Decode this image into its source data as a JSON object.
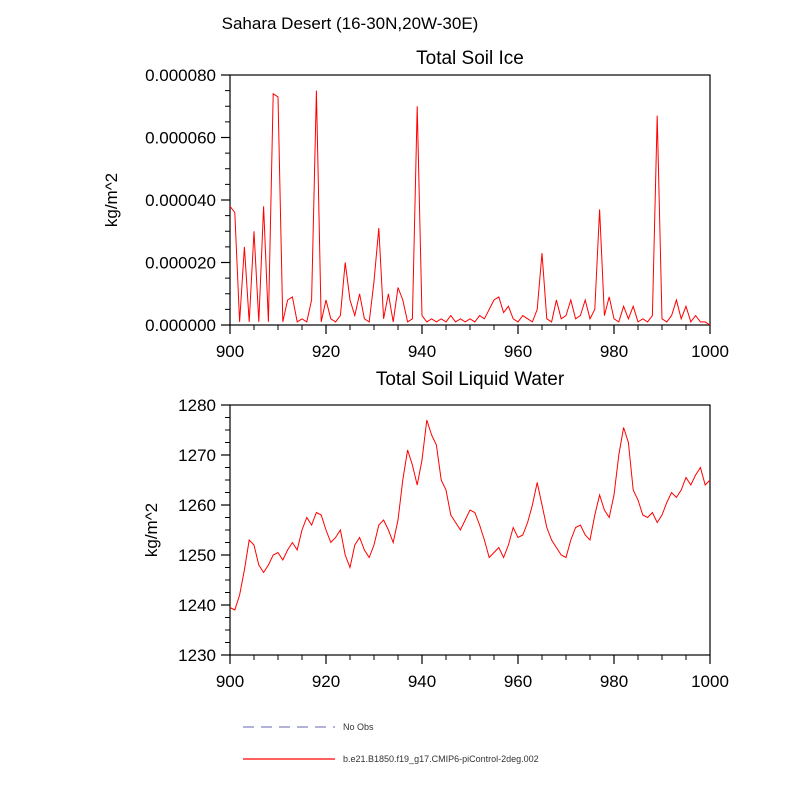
{
  "figure": {
    "title": "Sahara Desert (16-30N,20W-30E)"
  },
  "chart_data": [
    {
      "type": "line",
      "title": "Total Soil Ice",
      "ylabel": "kg/m^2",
      "xlabel": "",
      "xlim": [
        900,
        1000
      ],
      "ylim": [
        0,
        8e-05
      ],
      "grid": false,
      "xticks": {
        "values": [
          900,
          920,
          940,
          960,
          980,
          1000
        ],
        "labels": [
          "900",
          "920",
          "940",
          "960",
          "980",
          "1000"
        ]
      },
      "yticks": {
        "values": [
          0,
          2e-05,
          4e-05,
          6e-05,
          8e-05
        ],
        "labels": [
          "0.000000",
          "0.000020",
          "0.000040",
          "0.000060",
          "0.000080"
        ]
      },
      "minor_x_step": 5,
      "minor_y_step": 5e-06,
      "x_start": 900,
      "x_step": 1,
      "series": [
        {
          "name": "b.e21.B1850.f19_g17.CMIP6-piControl-2deg.002",
          "color": "#ff0000",
          "values": [
            3.8e-05,
            3.6e-05,
            1e-06,
            2.5e-05,
            1e-06,
            3e-05,
            1e-06,
            3.8e-05,
            1e-06,
            7.4e-05,
            7.3e-05,
            1e-06,
            8e-06,
            9e-06,
            1e-06,
            2e-06,
            1e-06,
            8e-06,
            7.5e-05,
            1e-06,
            8e-06,
            2e-06,
            1e-06,
            3e-06,
            2e-05,
            8e-06,
            3e-06,
            1e-05,
            2e-06,
            1e-06,
            1.4e-05,
            3.1e-05,
            2e-06,
            1e-05,
            1e-06,
            1.2e-05,
            8e-06,
            1e-06,
            2e-06,
            7e-05,
            3e-06,
            1e-06,
            2e-06,
            1e-06,
            2e-06,
            1e-06,
            3e-06,
            1e-06,
            2e-06,
            1e-06,
            2e-06,
            1e-06,
            3e-06,
            2e-06,
            5e-06,
            8e-06,
            9e-06,
            4e-06,
            6e-06,
            2e-06,
            1e-06,
            3e-06,
            2e-06,
            1e-06,
            5e-06,
            2.3e-05,
            2e-06,
            1e-06,
            8e-06,
            2e-06,
            3e-06,
            8e-06,
            2e-06,
            3e-06,
            8e-06,
            2e-06,
            5e-06,
            3.7e-05,
            3e-06,
            9e-06,
            2e-06,
            1e-06,
            6e-06,
            2e-06,
            6e-06,
            1e-06,
            2e-06,
            1e-06,
            3e-06,
            6.7e-05,
            2e-06,
            1e-06,
            3e-06,
            8e-06,
            2e-06,
            6e-06,
            1e-06,
            3e-06,
            1e-06,
            1e-06,
            0
          ]
        }
      ]
    },
    {
      "type": "line",
      "title": "Total Soil Liquid Water",
      "ylabel": "kg/m^2",
      "xlabel": "",
      "xlim": [
        900,
        1000
      ],
      "ylim": [
        1230,
        1280
      ],
      "grid": false,
      "xticks": {
        "values": [
          900,
          920,
          940,
          960,
          980,
          1000
        ],
        "labels": [
          "900",
          "920",
          "940",
          "960",
          "980",
          "1000"
        ]
      },
      "yticks": {
        "values": [
          1230,
          1240,
          1250,
          1260,
          1270,
          1280
        ],
        "labels": [
          "1230",
          "1240",
          "1250",
          "1260",
          "1270",
          "1280"
        ]
      },
      "minor_x_step": 5,
      "minor_y_step": 2.5,
      "x_start": 900,
      "x_step": 1,
      "series": [
        {
          "name": "b.e21.B1850.f19_g17.CMIP6-piControl-2deg.002",
          "color": "#ff0000",
          "values": [
            1239.5,
            1239,
            1242,
            1247,
            1253,
            1252,
            1248,
            1246.5,
            1248,
            1250,
            1250.5,
            1249,
            1251,
            1252.5,
            1251,
            1255,
            1257.5,
            1256,
            1258.5,
            1258,
            1255,
            1252.5,
            1253.5,
            1255,
            1250,
            1247.5,
            1252,
            1253.5,
            1251,
            1249.5,
            1252,
            1256,
            1257,
            1255,
            1252.5,
            1257,
            1265,
            1271,
            1268,
            1264,
            1269,
            1277,
            1274,
            1272,
            1265,
            1263,
            1258,
            1256.5,
            1255,
            1257,
            1259,
            1258.5,
            1256,
            1253,
            1249.5,
            1250.5,
            1251.5,
            1249.5,
            1252,
            1255.5,
            1253.5,
            1254,
            1256.5,
            1260,
            1264.5,
            1260,
            1255.5,
            1253,
            1251.5,
            1250,
            1249.5,
            1253,
            1255.5,
            1256,
            1254,
            1253,
            1258,
            1262,
            1259,
            1257.5,
            1262,
            1270,
            1275.5,
            1272.5,
            1263,
            1261,
            1258,
            1257.5,
            1258.5,
            1256.5,
            1258,
            1260.5,
            1262.5,
            1261.5,
            1263,
            1265.5,
            1264,
            1266,
            1267.5,
            1264,
            1265
          ]
        }
      ]
    }
  ],
  "legend": {
    "items": [
      {
        "label": "No Obs",
        "color": "#9999cc",
        "line_style": "dashed"
      },
      {
        "label": "b.e21.B1850.f19_g17.CMIP6-piControl-2deg.002",
        "color": "#ff0000",
        "line_style": "solid"
      }
    ]
  }
}
